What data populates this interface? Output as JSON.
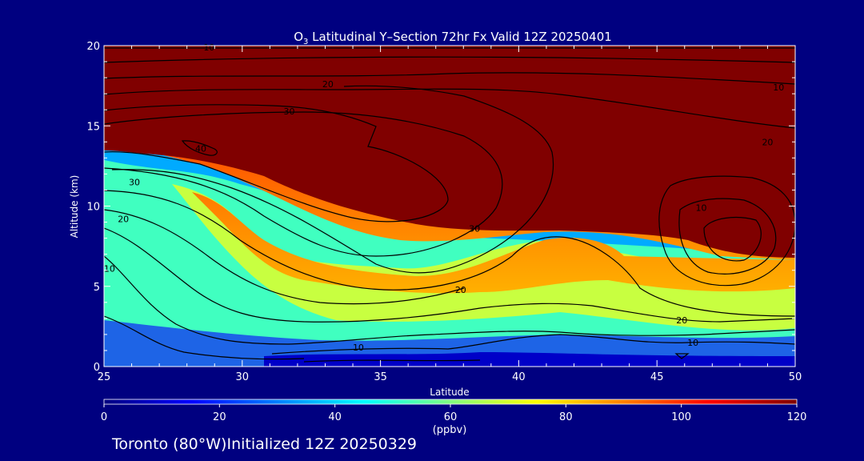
{
  "title": {
    "species_main": "O",
    "species_sub": "3",
    "rest": " Latitudinal Y–Section 72hr  Fx Valid 12Z 20250401"
  },
  "footer": "Toronto (80°W)Initialized 12Z 20250329",
  "chart_data": {
    "type": "heatmap",
    "xlabel": "Latitude",
    "ylabel": "Altitude (km)",
    "xlim": [
      25,
      50
    ],
    "ylim": [
      0,
      20
    ],
    "xticks": [
      25,
      30,
      35,
      40,
      45,
      50
    ],
    "yticks": [
      0,
      5,
      10,
      15,
      20
    ],
    "colorbar": {
      "label": "(ppbv)",
      "range": [
        0,
        120
      ],
      "ticks": [
        0,
        20,
        40,
        60,
        80,
        100,
        120
      ],
      "colors": [
        "#00007f",
        "#0000ff",
        "#0080ff",
        "#00ffff",
        "#80ff80",
        "#ffff00",
        "#ff8000",
        "#ff0000",
        "#7f0000"
      ]
    },
    "contour_labels": [
      {
        "text": "30",
        "x": 26.1,
        "y": 11.5
      },
      {
        "text": "20",
        "x": 25.7,
        "y": 9.2
      },
      {
        "text": "10",
        "x": 25.2,
        "y": 6.1
      },
      {
        "text": "10",
        "x": 28.8,
        "y": 19.9
      },
      {
        "text": "20",
        "x": 33.1,
        "y": 17.6
      },
      {
        "text": "30",
        "x": 31.7,
        "y": 15.9
      },
      {
        "text": "40",
        "x": 28.5,
        "y": 13.6
      },
      {
        "text": "30",
        "x": 38.4,
        "y": 8.6
      },
      {
        "text": "20",
        "x": 37.9,
        "y": 4.8
      },
      {
        "text": "10",
        "x": 34.2,
        "y": 1.2
      },
      {
        "text": "10",
        "x": 49.4,
        "y": 17.4
      },
      {
        "text": "20",
        "x": 49.0,
        "y": 14.0
      },
      {
        "text": "10",
        "x": 46.6,
        "y": 9.9
      },
      {
        "text": "20",
        "x": 45.9,
        "y": 2.9
      },
      {
        "text": "10",
        "x": 46.3,
        "y": 1.5
      }
    ]
  }
}
